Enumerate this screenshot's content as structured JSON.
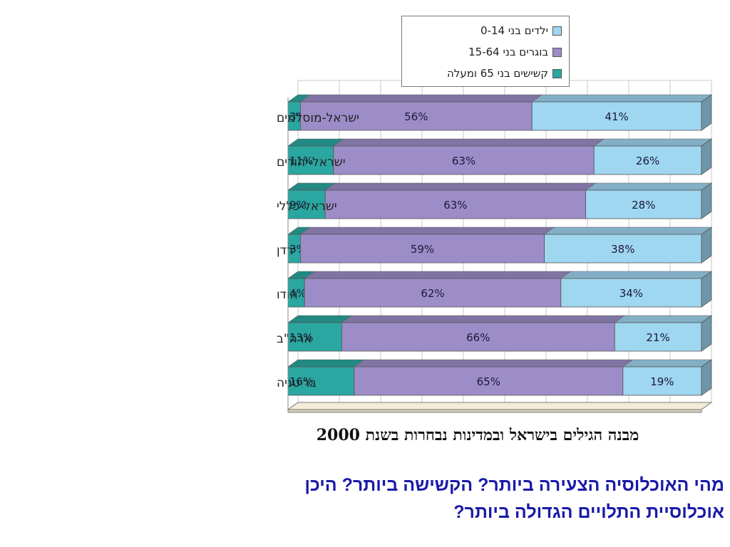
{
  "colors": {
    "children": "#9fd6f0",
    "adults": "#9c8dc8",
    "elderly": "#2aa7a0",
    "floor": "#f3ecd8",
    "question": "#1a1aa8"
  },
  "chart_data": {
    "type": "bar",
    "orientation": "horizontal",
    "stacked": true,
    "title": "מבנה הגילים בישראל ובמדינות נבחרות בשנת 2000",
    "categories": [
      "ישראל-מוסלמים",
      "ישראל-יהודים",
      "ישראל-כללי",
      "ירדן",
      "הודו",
      "ארה\"ב",
      "בריטניה"
    ],
    "series": [
      {
        "name": "קשישים בני 65 ומעלה",
        "key": "elderly",
        "values": [
          3,
          11,
          9,
          3,
          4,
          13,
          16
        ],
        "labels": [
          "3%",
          "11%",
          "9%",
          "3%",
          "4%",
          "13%",
          "16%"
        ]
      },
      {
        "name": "בוגרים בני 15-64",
        "key": "adults",
        "values": [
          56,
          63,
          63,
          59,
          62,
          66,
          65
        ],
        "labels": [
          "56%",
          "63%",
          "63%",
          "59%",
          "62%",
          "66%",
          "65%"
        ]
      },
      {
        "name": "ילדים בני 0-14",
        "key": "children",
        "values": [
          41,
          26,
          28,
          38,
          34,
          21,
          19
        ],
        "labels": [
          "41%",
          "26%",
          "28%",
          "38%",
          "34%",
          "21%",
          "19%"
        ]
      }
    ],
    "xlim": [
      0,
      100
    ],
    "grid": true,
    "legend_position": "top"
  },
  "legend": [
    {
      "label": "ילדים בני 0-14",
      "key": "children"
    },
    {
      "label": "בוגרים בני 15-64",
      "key": "adults"
    },
    {
      "label": "קשישים בני 65 ומעלה",
      "key": "elderly"
    }
  ],
  "question": {
    "line1": "מהי האוכלוסיה הצעירה ביותר? הקשישה ביותר? היכן",
    "line2": "אוכלוסיית התלויים הגדולה ביותר?"
  }
}
